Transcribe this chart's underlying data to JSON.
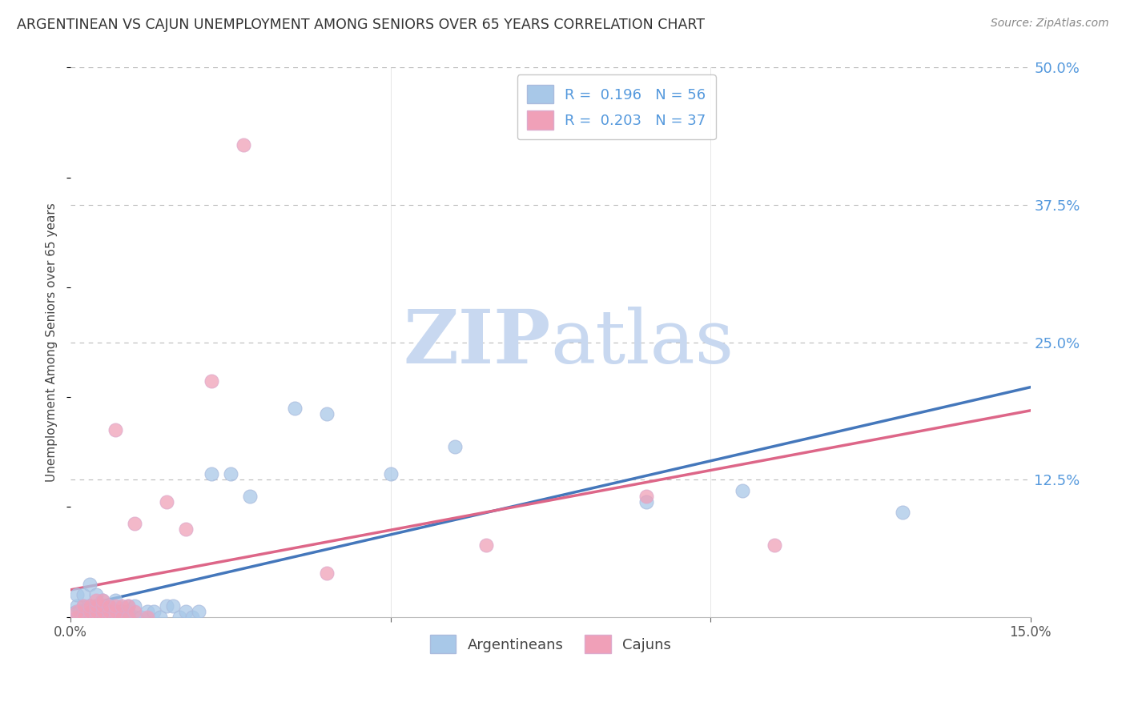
{
  "title": "ARGENTINEAN VS CAJUN UNEMPLOYMENT AMONG SENIORS OVER 65 YEARS CORRELATION CHART",
  "source": "Source: ZipAtlas.com",
  "ylabel": "Unemployment Among Seniors over 65 years",
  "right_yticks": [
    "50.0%",
    "37.5%",
    "25.0%",
    "12.5%"
  ],
  "right_ytick_vals": [
    0.5,
    0.375,
    0.25,
    0.125
  ],
  "xlim": [
    0.0,
    0.15
  ],
  "ylim": [
    0.0,
    0.5
  ],
  "legend_R_argentinean": "0.196",
  "legend_N_argentinean": "56",
  "legend_R_cajun": "0.203",
  "legend_N_cajun": "37",
  "argentinean_color": "#A8C8E8",
  "cajun_color": "#F0A0B8",
  "trend_argentinean_color": "#4477BB",
  "trend_cajun_color": "#DD6688",
  "watermark_zip_color": "#C8D8F0",
  "watermark_atlas_color": "#C8D8F0",
  "background_color": "#FFFFFF",
  "arg_x": [
    0.0008,
    0.001,
    0.001,
    0.0015,
    0.002,
    0.002,
    0.002,
    0.002,
    0.003,
    0.003,
    0.003,
    0.003,
    0.003,
    0.003,
    0.004,
    0.004,
    0.004,
    0.004,
    0.005,
    0.005,
    0.005,
    0.005,
    0.005,
    0.005,
    0.006,
    0.006,
    0.006,
    0.007,
    0.007,
    0.007,
    0.008,
    0.008,
    0.009,
    0.009,
    0.01,
    0.01,
    0.011,
    0.012,
    0.013,
    0.014,
    0.015,
    0.016,
    0.017,
    0.018,
    0.019,
    0.02,
    0.022,
    0.025,
    0.028,
    0.035,
    0.04,
    0.05,
    0.06,
    0.09,
    0.105,
    0.13
  ],
  "arg_y": [
    0.005,
    0.01,
    0.02,
    0.005,
    0.0,
    0.005,
    0.01,
    0.02,
    0.0,
    0.005,
    0.005,
    0.01,
    0.01,
    0.03,
    0.0,
    0.005,
    0.01,
    0.02,
    0.0,
    0.0,
    0.005,
    0.005,
    0.01,
    0.015,
    0.0,
    0.005,
    0.01,
    0.0,
    0.005,
    0.015,
    0.0,
    0.005,
    0.005,
    0.01,
    0.0,
    0.01,
    0.0,
    0.005,
    0.005,
    0.0,
    0.01,
    0.01,
    0.0,
    0.005,
    0.0,
    0.005,
    0.13,
    0.13,
    0.11,
    0.19,
    0.185,
    0.13,
    0.155,
    0.105,
    0.115,
    0.095
  ],
  "caj_x": [
    0.001,
    0.001,
    0.002,
    0.002,
    0.003,
    0.003,
    0.003,
    0.004,
    0.004,
    0.004,
    0.004,
    0.005,
    0.005,
    0.005,
    0.005,
    0.006,
    0.006,
    0.006,
    0.007,
    0.007,
    0.007,
    0.007,
    0.008,
    0.008,
    0.009,
    0.009,
    0.01,
    0.01,
    0.012,
    0.015,
    0.018,
    0.022,
    0.027,
    0.04,
    0.065,
    0.09,
    0.11
  ],
  "caj_y": [
    0.0,
    0.005,
    0.0,
    0.01,
    0.0,
    0.005,
    0.01,
    0.0,
    0.005,
    0.01,
    0.015,
    0.0,
    0.005,
    0.01,
    0.015,
    0.0,
    0.005,
    0.01,
    0.0,
    0.005,
    0.01,
    0.17,
    0.0,
    0.01,
    0.0,
    0.01,
    0.005,
    0.085,
    0.0,
    0.105,
    0.08,
    0.215,
    0.43,
    0.04,
    0.065,
    0.11,
    0.065
  ]
}
